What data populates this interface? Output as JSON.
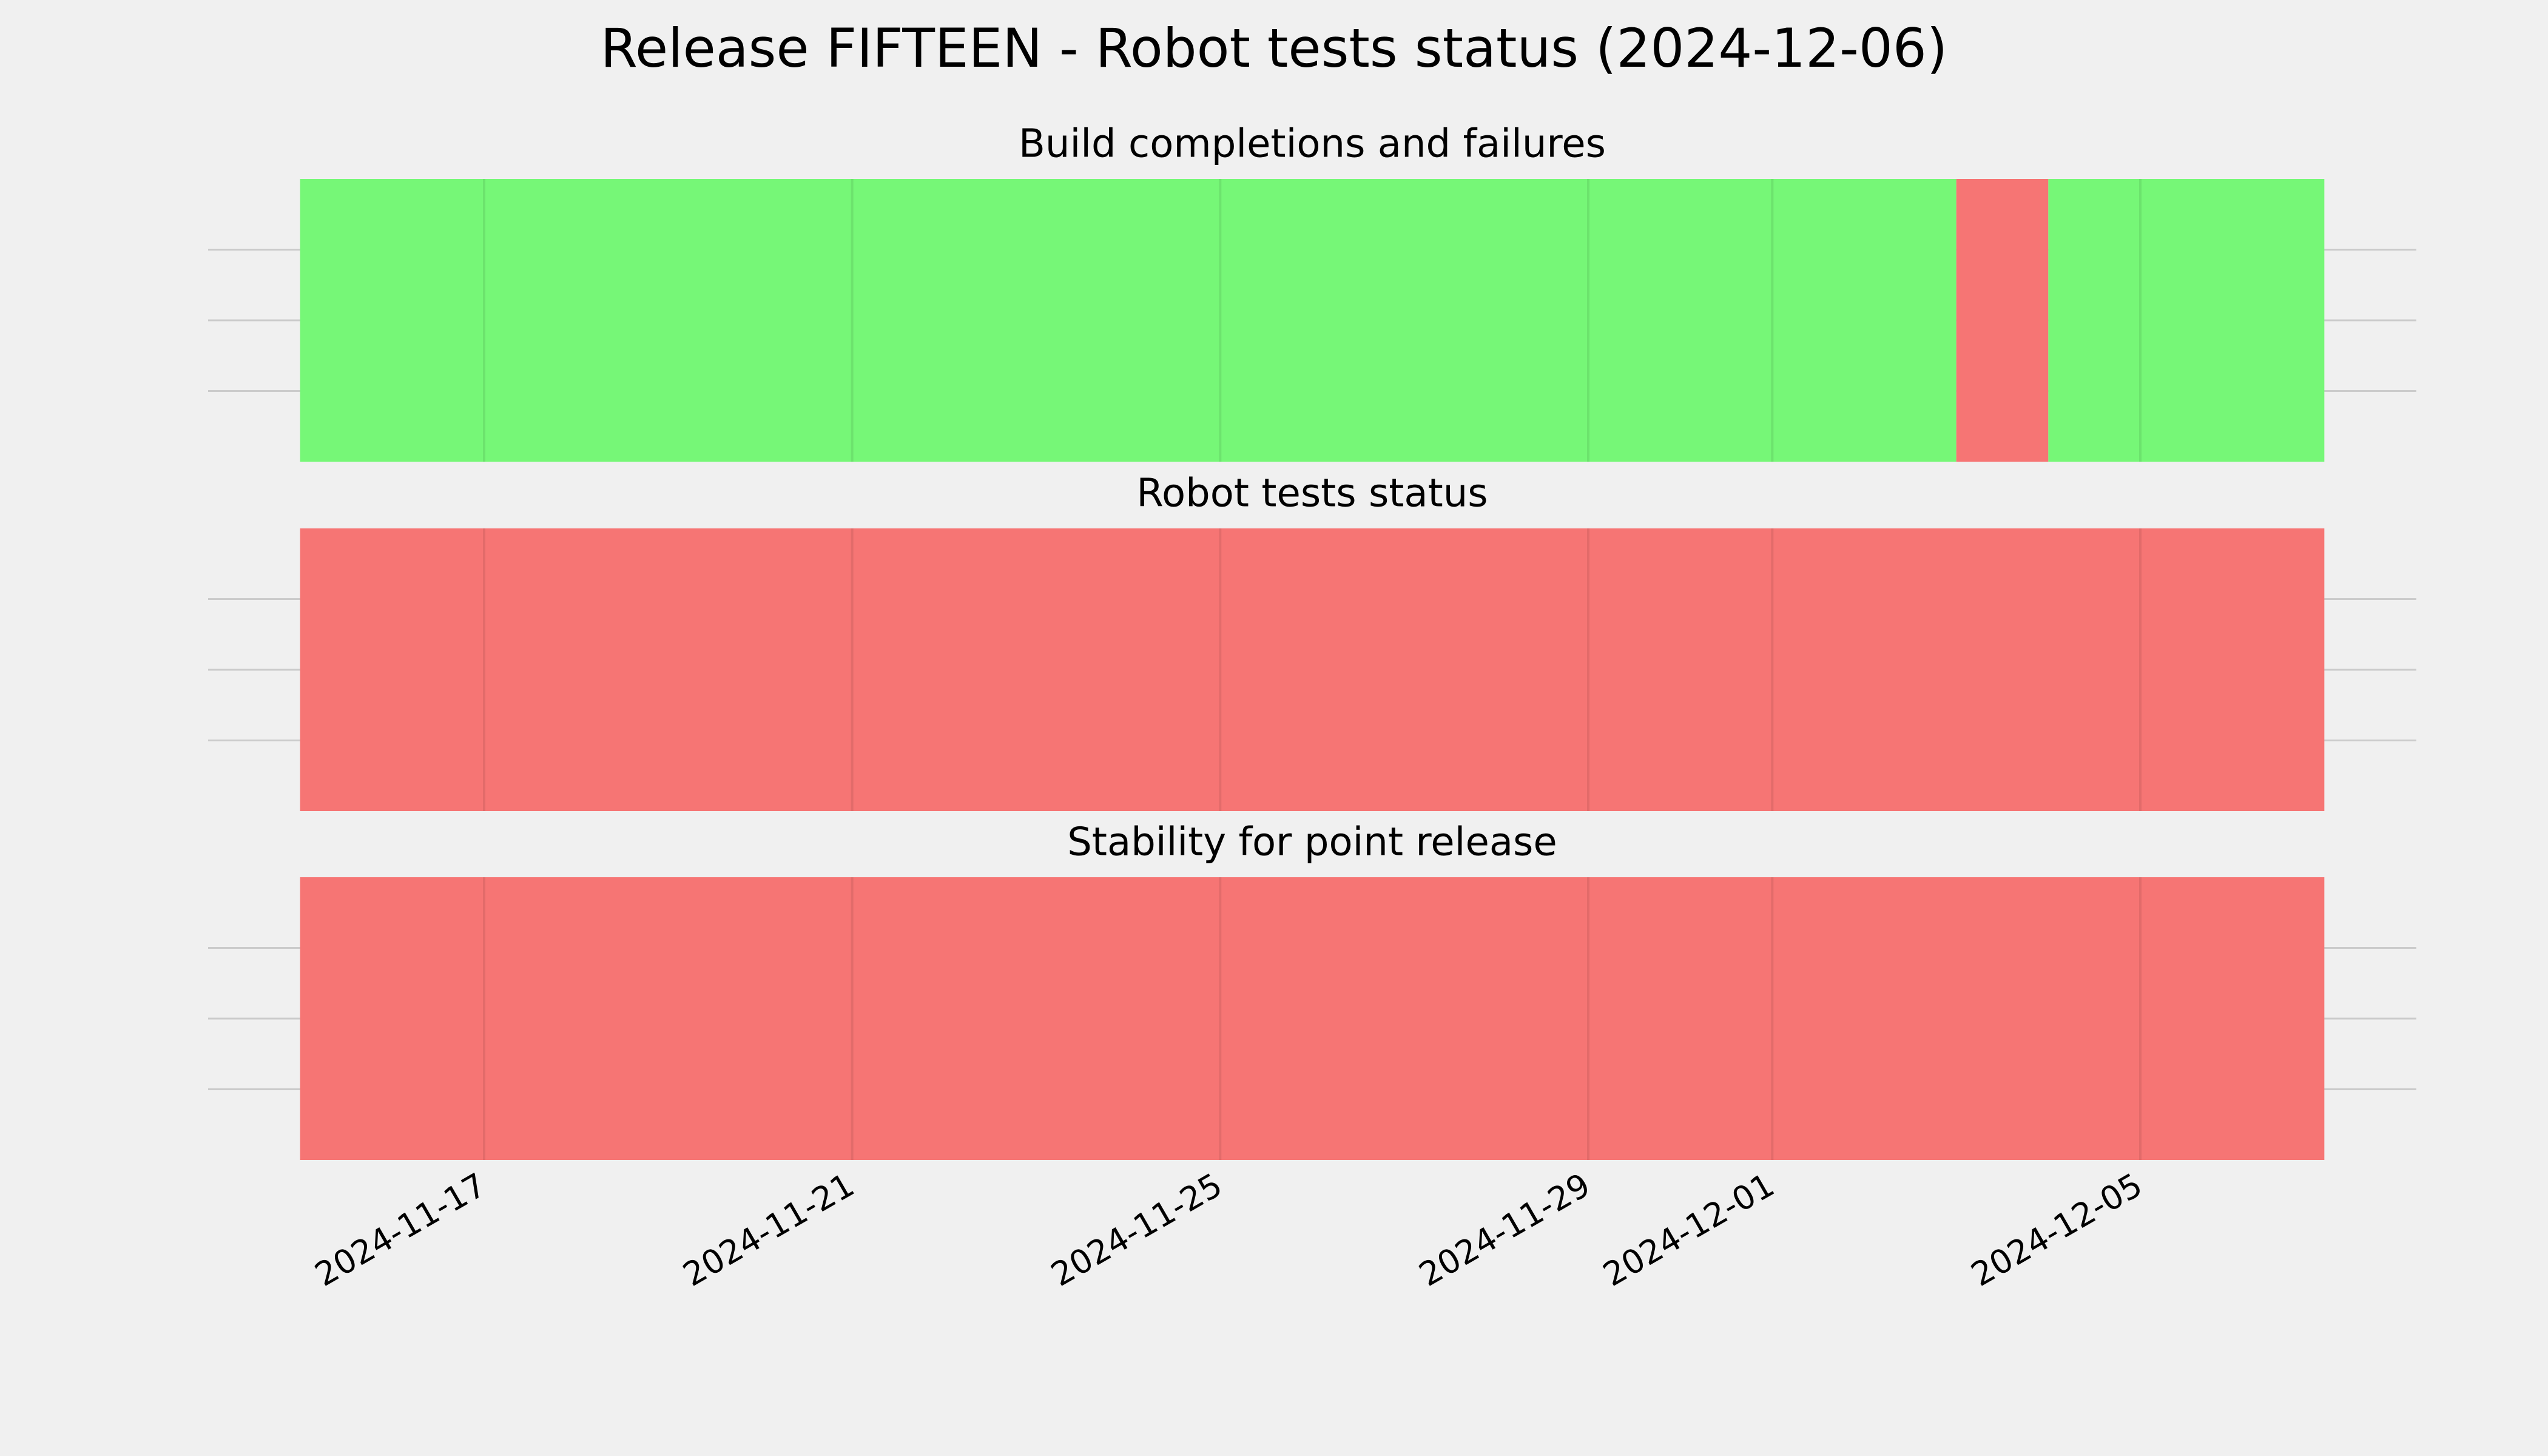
{
  "chart_data": {
    "type": "timeline",
    "title": "Release FIFTEEN - Robot tests status (2024-12-06)",
    "xlim": [
      "2024-11-14",
      "2024-12-08"
    ],
    "xticks": [
      "2024-11-17",
      "2024-11-21",
      "2024-11-25",
      "2024-11-29",
      "2024-12-01",
      "2024-12-05"
    ],
    "ylim": [
      0,
      1
    ],
    "ygrid": [
      0.25,
      0.5,
      0.75
    ],
    "grid": true,
    "panels": [
      {
        "title": "Build completions and failures",
        "segments": [
          {
            "start": "2024-11-15",
            "end": "2024-12-03",
            "color": "#76f777"
          },
          {
            "start": "2024-12-03",
            "end": "2024-12-04",
            "color": "#f67574"
          },
          {
            "start": "2024-12-04",
            "end": "2024-12-07",
            "color": "#76f777"
          }
        ]
      },
      {
        "title": "Robot tests status",
        "segments": [
          {
            "start": "2024-11-15",
            "end": "2024-12-07",
            "color": "#f67574"
          }
        ]
      },
      {
        "title": "Stability for point release",
        "segments": [
          {
            "start": "2024-11-15",
            "end": "2024-12-07",
            "color": "#f67574"
          }
        ]
      }
    ]
  }
}
